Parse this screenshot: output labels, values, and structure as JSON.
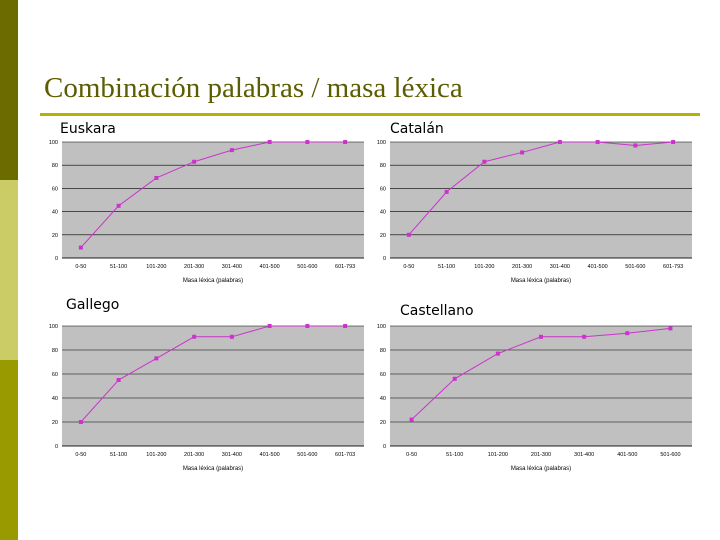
{
  "slide": {
    "title": "Combinación palabras / masa léxica",
    "colors": {
      "sidebar_dark": "#6b6b00",
      "sidebar_light": "#cccc66",
      "sidebar_mid": "#999900",
      "rule": "#b3b300",
      "plot_bg": "#c0c0c0",
      "series": "#cc33cc"
    }
  },
  "chart_data": [
    {
      "type": "line",
      "label": "Euskara",
      "categories": [
        "0-50",
        "51-100",
        "101-200",
        "201-300",
        "301-400",
        "401-500",
        "501-600",
        "601-793"
      ],
      "values": [
        9,
        45,
        69,
        83,
        93,
        100,
        100,
        100
      ],
      "xlabel": "Masa léxica (palabras)",
      "ylabel": "",
      "ylim": [
        0,
        100
      ],
      "yticks": [
        0,
        20,
        40,
        60,
        80,
        100
      ],
      "grid": true
    },
    {
      "type": "line",
      "label": "Catalán",
      "categories": [
        "0-50",
        "51-100",
        "101-200",
        "201-300",
        "301-400",
        "401-500",
        "501-600",
        "601-793"
      ],
      "values": [
        20,
        57,
        83,
        91,
        100,
        100,
        97,
        100
      ],
      "xlabel": "Masa léxica (palabras)",
      "ylabel": "",
      "ylim": [
        0,
        100
      ],
      "yticks": [
        0,
        20,
        40,
        60,
        80,
        100
      ],
      "grid": true
    },
    {
      "type": "line",
      "label": "Gallego",
      "categories": [
        "0-50",
        "51-100",
        "101-200",
        "201-300",
        "301-400",
        "401-500",
        "501-600",
        "601-703"
      ],
      "values": [
        20,
        55,
        73,
        91,
        91,
        100,
        100,
        100
      ],
      "xlabel": "Masa léxica (palabras)",
      "ylabel": "",
      "ylim": [
        0,
        100
      ],
      "yticks": [
        0,
        20,
        40,
        60,
        80,
        100
      ],
      "grid": true
    },
    {
      "type": "line",
      "label": "Castellano",
      "categories": [
        "0-50",
        "51-100",
        "101-200",
        "201-300",
        "301-400",
        "401-500",
        "501-600"
      ],
      "values": [
        22,
        56,
        77,
        91,
        91,
        94,
        98
      ],
      "xlabel": "Masa léxica (palabras)",
      "ylabel": "",
      "ylim": [
        0,
        100
      ],
      "yticks": [
        0,
        20,
        40,
        60,
        80,
        100
      ],
      "grid": true
    }
  ]
}
